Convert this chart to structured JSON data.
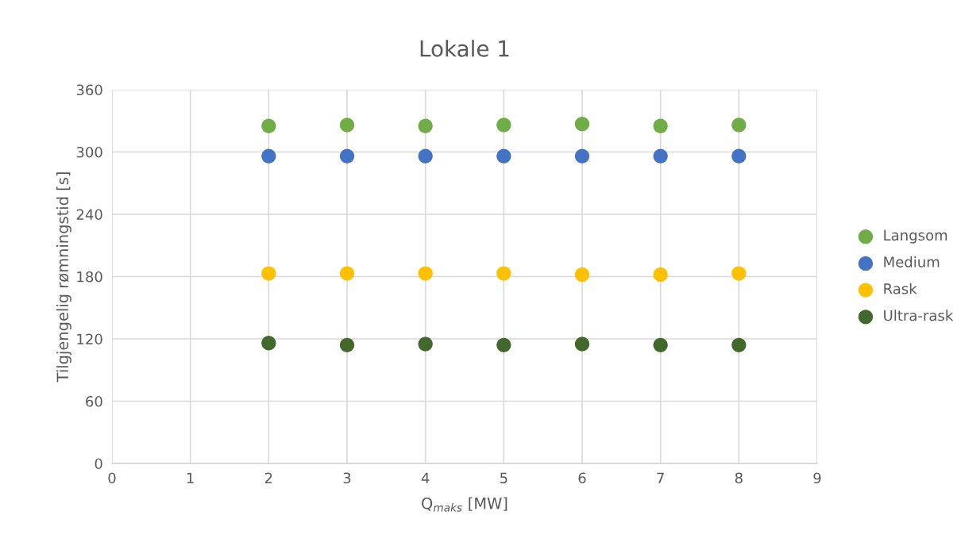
{
  "chart_data": {
    "type": "scatter",
    "title": "Lokale 1",
    "xlabel": "Q$_{maks}$ [MW]",
    "ylabel": "Tilgjengelig rømningstid [s]",
    "x": [
      2,
      3,
      4,
      5,
      6,
      7,
      8
    ],
    "series": [
      {
        "name": "Langsom",
        "color": "#70ad47",
        "values": [
          325,
          326,
          325,
          326,
          327,
          325,
          326
        ]
      },
      {
        "name": "Medium",
        "color": "#4472c4",
        "values": [
          296,
          296,
          296,
          296,
          296,
          296,
          296
        ]
      },
      {
        "name": "Rask",
        "color": "#ffc000",
        "values": [
          183,
          183,
          183,
          183,
          182,
          182,
          183
        ]
      },
      {
        "name": "Ultra-rask",
        "color": "#43682b",
        "values": [
          116,
          114,
          115,
          114,
          115,
          114,
          114
        ]
      }
    ],
    "xlim": [
      0,
      9
    ],
    "xticks": [
      0,
      1,
      2,
      3,
      4,
      5,
      6,
      7,
      8,
      9
    ],
    "ylim": [
      0,
      360
    ],
    "yticks": [
      0,
      60,
      120,
      180,
      240,
      300,
      360
    ],
    "grid": true,
    "legend": "right",
    "marker": "circle"
  }
}
